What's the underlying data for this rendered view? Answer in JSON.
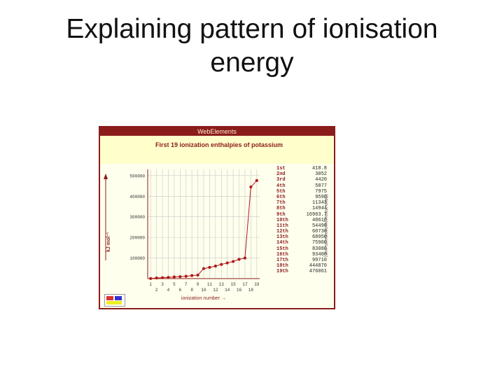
{
  "slide": {
    "title_line1": "Explaining pattern of ionisation",
    "title_line2": "energy"
  },
  "figure": {
    "header": "WebElements",
    "subtitle": "First 19 ionization enthalpies of potassium",
    "credit": "©Mark Winter [webelements.com]"
  },
  "chart_data": {
    "type": "line",
    "title": "First 19 ionization enthalpies of potassium",
    "xlabel": "ionization number →",
    "ylabel": "kJ mol⁻¹",
    "x": [
      1,
      2,
      3,
      4,
      5,
      6,
      7,
      8,
      9,
      10,
      11,
      12,
      13,
      14,
      15,
      16,
      17,
      18,
      19
    ],
    "x_ticks_top": [
      "1",
      "3",
      "5",
      "7",
      "9",
      "11",
      "13",
      "15",
      "17",
      "19"
    ],
    "x_ticks_bottom": [
      "2",
      "4",
      "6",
      "8",
      "10",
      "12",
      "14",
      "16",
      "18"
    ],
    "y_ticks": [
      "100000",
      "200000",
      "300000",
      "400000",
      "500000"
    ],
    "ylim": [
      0,
      530000
    ],
    "grid": true,
    "series": [
      {
        "values": [
          419,
          3052,
          4420,
          5877,
          7975,
          9590,
          11343,
          14944,
          16963.7,
          48610,
          54490,
          60730,
          68950,
          75900,
          83080,
          93400,
          99710,
          444870,
          476061
        ]
      }
    ],
    "table": [
      {
        "n": "1st",
        "v": "418.8"
      },
      {
        "n": "2nd",
        "v": "3052"
      },
      {
        "n": "3rd",
        "v": "4420"
      },
      {
        "n": "4th",
        "v": "5877"
      },
      {
        "n": "5th",
        "v": "7975"
      },
      {
        "n": "6th",
        "v": "9590"
      },
      {
        "n": "7th",
        "v": "11343"
      },
      {
        "n": "8th",
        "v": "14944"
      },
      {
        "n": "9th",
        "v": "16963.7"
      },
      {
        "n": "10th",
        "v": "48610"
      },
      {
        "n": "11th",
        "v": "54490"
      },
      {
        "n": "12th",
        "v": "60730"
      },
      {
        "n": "13th",
        "v": "68950"
      },
      {
        "n": "14th",
        "v": "75900"
      },
      {
        "n": "15th",
        "v": "83080"
      },
      {
        "n": "16th",
        "v": "93400"
      },
      {
        "n": "17th",
        "v": "99710"
      },
      {
        "n": "18th",
        "v": "444870"
      },
      {
        "n": "19th",
        "v": "476061"
      }
    ],
    "colors": {
      "line": "#b01818",
      "marker": "#b01818",
      "grid": "#c8c8c8",
      "axis": "#8b1c1c",
      "frame": "#8b1c1c"
    }
  }
}
